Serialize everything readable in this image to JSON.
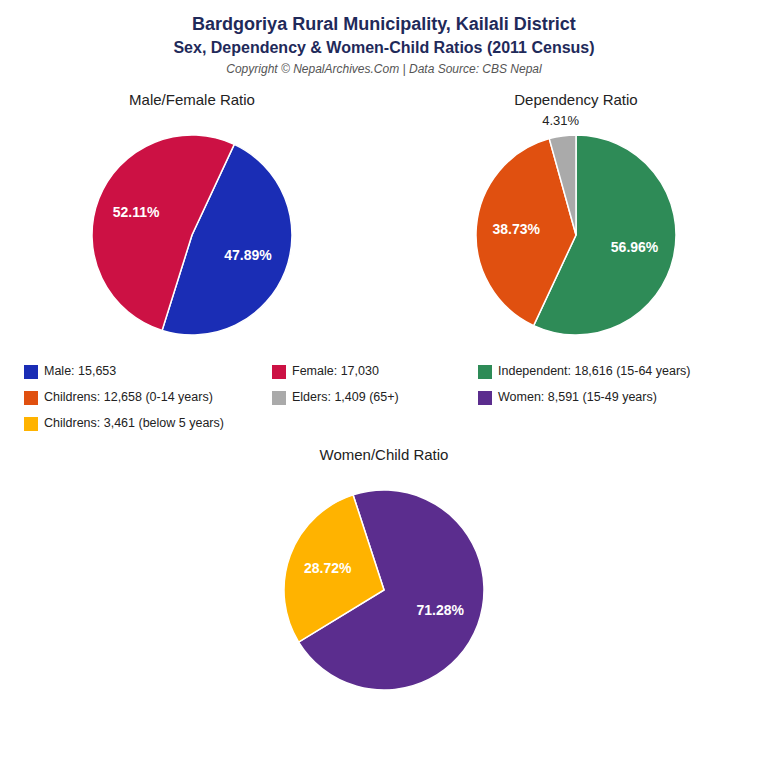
{
  "title": "Bardgoriya Rural Municipality, Kailali District",
  "subtitle": "Sex, Dependency & Women-Child Ratios (2011 Census)",
  "annotations": [
    "Copyright © NepalArchives.Com | Data Source: CBS Nepal"
  ],
  "chart_data": [
    {
      "type": "pie",
      "title": "Male/Female Ratio",
      "categories": [
        "Male: 15,653",
        "Female: 17,030"
      ],
      "values": [
        47.89,
        52.11
      ],
      "value_labels": [
        "47.89%",
        "52.11%"
      ],
      "colors": [
        "#1a2db5",
        "#cc1144"
      ],
      "data_labels": true,
      "legend": "bottom"
    },
    {
      "type": "pie",
      "title": "Dependency Ratio",
      "categories": [
        "Independent: 18,616 (15-64 years)",
        "Childrens: 12,658 (0-14 years)",
        "Elders: 1,409 (65+)"
      ],
      "values": [
        56.96,
        38.73,
        4.31
      ],
      "value_labels": [
        "56.96%",
        "38.73%",
        "4.31%"
      ],
      "colors": [
        "#2e8b57",
        "#e05010",
        "#aaaaaa"
      ],
      "data_labels": true,
      "legend": "bottom"
    },
    {
      "type": "pie",
      "title": "Women/Child Ratio",
      "categories": [
        "Women: 8,591 (15-49 years)",
        "Childrens: 3,461 (below 5 years)"
      ],
      "values": [
        71.28,
        28.72
      ],
      "value_labels": [
        "71.28%",
        "28.72%"
      ],
      "colors": [
        "#5b2d8e",
        "#FFB300"
      ],
      "data_labels": true,
      "legend": "top"
    }
  ]
}
